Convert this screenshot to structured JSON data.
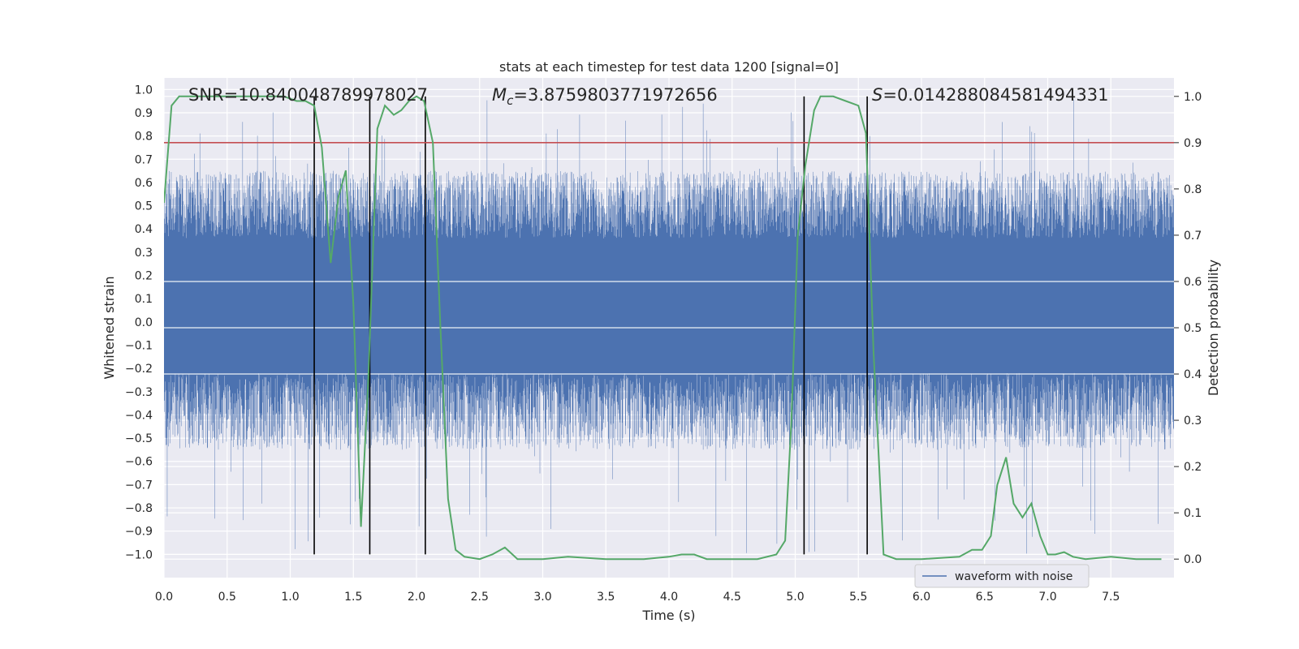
{
  "chart_data": {
    "type": "line",
    "title": "stats at each timestep for test data 1200 [signal=0]",
    "xlabel": "Time (s)",
    "ylabel": "Whitened strain",
    "y2label": "Detection probability",
    "xlim": [
      0,
      8.0
    ],
    "ylim": [
      -1.1,
      1.05
    ],
    "y2lim": [
      -0.04,
      1.04
    ],
    "x_ticks": [
      0.0,
      0.5,
      1.0,
      1.5,
      2.0,
      2.5,
      3.0,
      3.5,
      4.0,
      4.5,
      5.0,
      5.5,
      6.0,
      6.5,
      7.0,
      7.5
    ],
    "y_ticks": [
      -1.0,
      -0.9,
      -0.8,
      -0.7,
      -0.6,
      -0.5,
      -0.4,
      -0.3,
      -0.2,
      -0.1,
      0.0,
      0.1,
      0.2,
      0.3,
      0.4,
      0.5,
      0.6,
      0.7,
      0.8,
      0.9,
      1.0
    ],
    "y2_ticks": [
      0.0,
      0.1,
      0.2,
      0.3,
      0.4,
      0.5,
      0.6,
      0.7,
      0.8,
      0.9,
      1.0
    ],
    "grid": true,
    "legend_position": "lower-right",
    "annotations": {
      "snr": "SNR=10.840048789978027",
      "mc_symbol": "M",
      "mc_subscript": "c",
      "mc_value": "=3.8759803771972656",
      "s_symbol": "S",
      "s_value": "=0.014288084581494331"
    },
    "threshold_line": {
      "axis": "secondary",
      "y": 0.9,
      "color": "#c44e52"
    },
    "vertical_lines": [
      1.19,
      1.63,
      2.07,
      5.07,
      5.57
    ],
    "waveform": {
      "name": "waveform with noise",
      "color": "#4c72b0",
      "amplitude_envelope": {
        "core": [
          -0.22,
          0.36
        ],
        "typical_peaks": [
          -0.55,
          0.65
        ],
        "max": 0.96,
        "min": -1.0
      }
    },
    "probability_series": {
      "color": "#55a868",
      "x": [
        0.0,
        0.06,
        0.12,
        0.25,
        0.5,
        0.75,
        0.95,
        1.05,
        1.12,
        1.19,
        1.25,
        1.32,
        1.38,
        1.44,
        1.5,
        1.56,
        1.62,
        1.69,
        1.75,
        1.82,
        1.88,
        1.94,
        2.0,
        2.06,
        2.13,
        2.19,
        2.25,
        2.31,
        2.38,
        2.5,
        2.6,
        2.7,
        2.8,
        3.0,
        3.2,
        3.5,
        3.8,
        4.0,
        4.1,
        4.2,
        4.3,
        4.5,
        4.7,
        4.85,
        4.92,
        4.97,
        5.02,
        5.08,
        5.15,
        5.2,
        5.3,
        5.4,
        5.5,
        5.56,
        5.62,
        5.7,
        5.8,
        6.0,
        6.3,
        6.4,
        6.48,
        6.55,
        6.6,
        6.67,
        6.73,
        6.8,
        6.87,
        6.94,
        7.0,
        7.06,
        7.13,
        7.2,
        7.3,
        7.5,
        7.7,
        7.9
      ],
      "values": [
        0.77,
        0.98,
        1.0,
        1.0,
        1.0,
        1.0,
        1.0,
        0.99,
        0.99,
        0.98,
        0.89,
        0.64,
        0.78,
        0.84,
        0.55,
        0.07,
        0.4,
        0.93,
        0.98,
        0.96,
        0.97,
        0.99,
        1.0,
        0.99,
        0.9,
        0.5,
        0.13,
        0.02,
        0.005,
        0.0,
        0.01,
        0.025,
        0.0,
        0.0,
        0.005,
        0.0,
        0.0,
        0.005,
        0.01,
        0.01,
        0.0,
        0.0,
        0.0,
        0.01,
        0.04,
        0.3,
        0.7,
        0.85,
        0.97,
        1.0,
        1.0,
        0.99,
        0.98,
        0.92,
        0.45,
        0.01,
        0.0,
        0.0,
        0.005,
        0.02,
        0.02,
        0.05,
        0.16,
        0.22,
        0.12,
        0.09,
        0.12,
        0.05,
        0.01,
        0.01,
        0.015,
        0.005,
        0.0,
        0.005,
        0.0,
        0.0
      ]
    }
  }
}
